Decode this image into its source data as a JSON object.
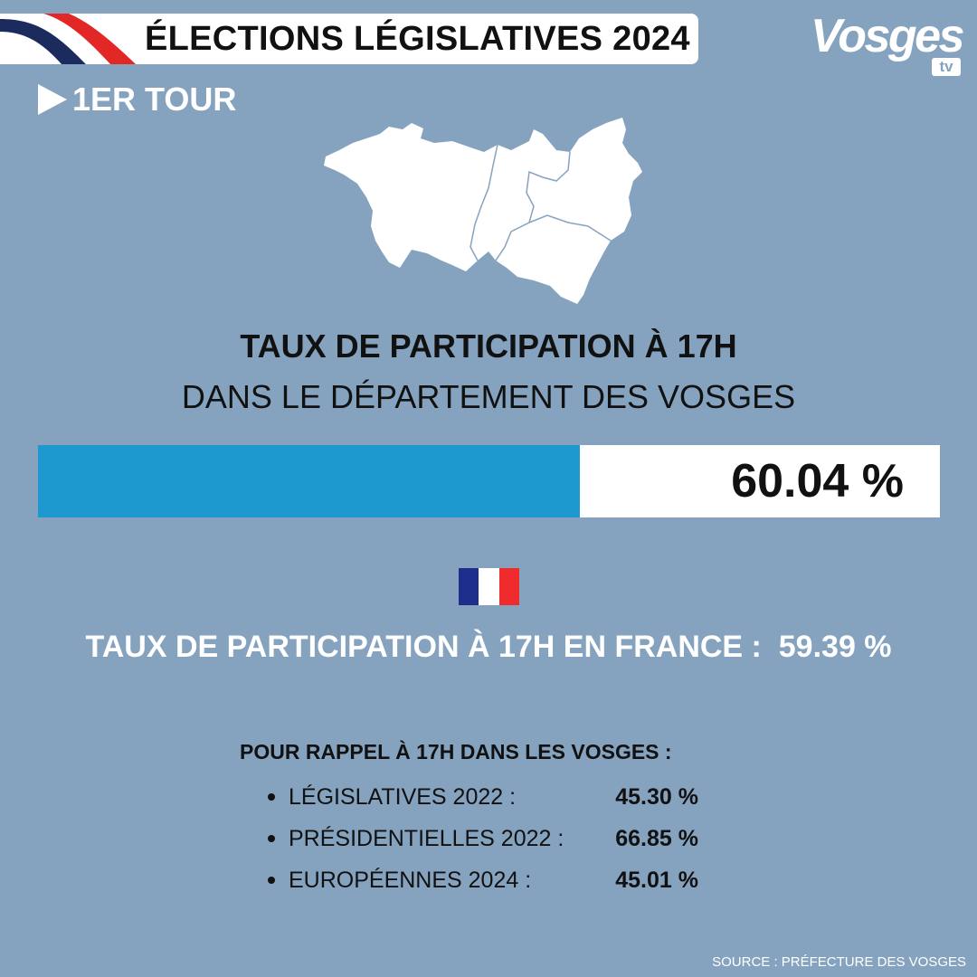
{
  "header": {
    "title": "ÉLECTIONS LÉGISLATIVES 2024",
    "ribbon_colors": [
      "#1b2b5e",
      "#ffffff",
      "#e32626"
    ]
  },
  "logo": {
    "word": "Vosges",
    "suffix": "tv"
  },
  "tour": {
    "label": "1ER TOUR",
    "icon": "play-arrow-icon"
  },
  "map": {
    "icon": "vosges-department-map"
  },
  "participation": {
    "title": "TAUX DE PARTICIPATION À 17H",
    "subtitle": "DANS LE DÉPARTEMENT DES VOSGES",
    "value_label": "60.04 %",
    "value": 60.04,
    "bar_color": "#1e99d0"
  },
  "france": {
    "flag_icon": "french-flag-icon",
    "flag_colors": [
      "#1d2e8c",
      "#ffffff",
      "#ef2b2d"
    ],
    "line": "TAUX DE PARTICIPATION À 17H EN FRANCE :  59.39 %"
  },
  "rappel": {
    "title": "POUR RAPPEL À 17H DANS LES VOSGES :",
    "items": [
      {
        "label": "LÉGISLATIVES 2022 :",
        "value": "45.30 %"
      },
      {
        "label": "PRÉSIDENTIELLES 2022 :",
        "value": "66.85 %"
      },
      {
        "label": "EUROPÉENNES 2024 :",
        "value": "45.01 %"
      }
    ]
  },
  "source": "SOURCE : PRÉFECTURE DES VOSGES"
}
